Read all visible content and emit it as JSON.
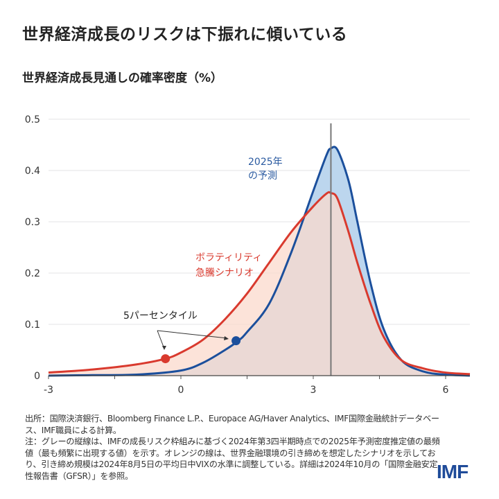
{
  "title": "世界経済成長のリスクは下振れに傾いている",
  "subtitle": "世界経済成長見通しの確率密度（%）",
  "chart_data": {
    "type": "area",
    "xlim": [
      -3,
      6.55
    ],
    "ylim": [
      0,
      0.5
    ],
    "xticks": [
      -3,
      0,
      3,
      6
    ],
    "xtick_labels": [
      "-3",
      "0",
      "3",
      "6"
    ],
    "yticks": [
      0,
      0.1,
      0.2,
      0.3,
      0.4,
      0.5
    ],
    "ytick_labels": [
      "0",
      "0.1",
      "0.2",
      "0.3",
      "0.4",
      "0.5"
    ],
    "grid": true,
    "mode_line_x": 3.4,
    "series": [
      {
        "name": "2025年の予測",
        "color": "#1b4f9c",
        "fill": "#bcd6ee",
        "x": [
          -3,
          -2,
          -1,
          0,
          0.5,
          1,
          1.3,
          1.5,
          2,
          2.5,
          3,
          3.3,
          3.4,
          3.55,
          3.8,
          4,
          4.3,
          4.6,
          5,
          5.5,
          6,
          6.55
        ],
        "y": [
          0.0,
          0.001,
          0.002,
          0.01,
          0.025,
          0.05,
          0.068,
          0.085,
          0.14,
          0.24,
          0.36,
          0.43,
          0.443,
          0.44,
          0.38,
          0.3,
          0.18,
          0.09,
          0.03,
          0.008,
          0.002,
          0.0
        ],
        "percentile5": {
          "x": 1.25,
          "y": 0.068
        }
      },
      {
        "name": "ボラティリティ急騰シナリオ",
        "color": "#d93a2e",
        "fill": "#fbd9cc",
        "x": [
          -3,
          -2,
          -1,
          -0.35,
          0,
          0.5,
          1,
          1.5,
          2,
          2.5,
          3,
          3.3,
          3.4,
          3.55,
          3.8,
          4,
          4.3,
          4.6,
          5,
          5.5,
          6,
          6.55
        ],
        "y": [
          0.006,
          0.012,
          0.022,
          0.033,
          0.045,
          0.07,
          0.11,
          0.16,
          0.22,
          0.28,
          0.33,
          0.355,
          0.356,
          0.345,
          0.28,
          0.22,
          0.14,
          0.075,
          0.03,
          0.014,
          0.006,
          0.003
        ],
        "percentile5": {
          "x": -0.35,
          "y": 0.033
        }
      }
    ],
    "annotations": {
      "blue_label_1": "2025年",
      "blue_label_2": "の予測",
      "red_label_1": "ボラティリティ",
      "red_label_2": "急騰シナリオ",
      "percentile_label": "5パーセンタイル"
    }
  },
  "notes": {
    "source": "出所：国際決済銀行、Bloomberg Finance L.P.、Europace AG/Haver Analytics、IMF国際金融統計データベース、IMF職員による計算。",
    "note": "注：グレーの縦線は、IMFの成長リスク枠組みに基づく2024年第3四半期時点での2025年予測密度推定値の最頻値（最も頻繁に出現する値）を示す。オレンジの線は、世界金融環境の引き締めを想定したシナリオを示しており、引き締め規模は2024年8月5日の平均日中VIXの水準に調整している。詳細は2024年10月の「国際金融安定性報告書（GFSR）」を参照。"
  },
  "logo": "IMF"
}
